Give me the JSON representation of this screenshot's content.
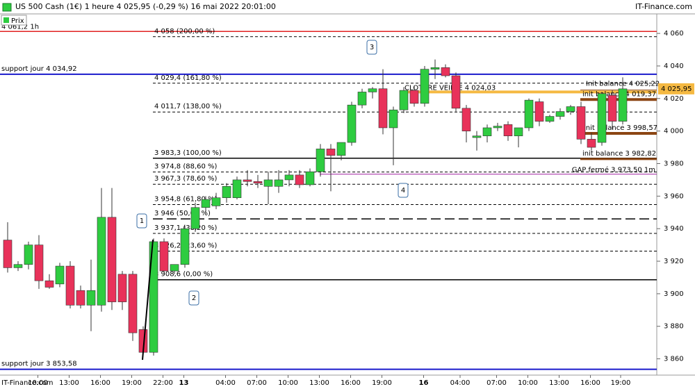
{
  "chart_data": {
    "type": "candlestick",
    "title": "US 500 Cash (1€) 1 heure 4 025,95 (-0,29 %) 16 mai 2022 20:01:00",
    "source": "IT-Finance.com",
    "watermark": "IT-Finance.com",
    "series": [
      {
        "name": "Prix",
        "up_color": "#2ecc40",
        "down_color": "#e8325a",
        "open": [
          3933,
          3916,
          3918,
          3930,
          3908,
          3906,
          3917,
          3902,
          3893,
          3893,
          3947,
          3912,
          3912,
          3878,
          3864,
          3932,
          3914,
          3918,
          3940,
          3953,
          3954,
          3959,
          3959,
          3970,
          3969,
          3966,
          3966,
          3970,
          3973,
          3967,
          3975,
          3989,
          3985,
          3993,
          4016,
          4024,
          4026,
          4002,
          4013,
          4025,
          4017,
          4038,
          4039,
          4034,
          4014,
          3996,
          3997,
          4002,
          4004,
          3997,
          4002,
          4018,
          4006,
          4009,
          4012,
          4015,
          3995,
          3993,
          4022,
          4006
        ],
        "high": [
          3944,
          3920,
          3932,
          3936,
          3912,
          3919,
          3920,
          3905,
          3921,
          3965,
          3965,
          3914,
          3914,
          3880,
          3934,
          3934,
          3918,
          3942,
          3956,
          3960,
          3962,
          3968,
          3972,
          3976,
          3973,
          3975,
          3976,
          3976,
          3976,
          3977,
          3992,
          3992,
          3993,
          4018,
          4026,
          4027,
          4038,
          4015,
          4027,
          4028,
          4040,
          4044,
          4041,
          4036,
          4016,
          4000,
          4004,
          4005,
          4006,
          4000,
          4020,
          4020,
          4010,
          4014,
          4016,
          4018,
          3999,
          4024,
          4025,
          4033
        ],
        "low": [
          3913,
          3914,
          3915,
          3903,
          3903,
          3904,
          3891,
          3891,
          3877,
          3889,
          3890,
          3890,
          3871,
          3862,
          3862,
          3912,
          3912,
          3916,
          3938,
          3950,
          3952,
          3956,
          3958,
          3966,
          3965,
          3955,
          3962,
          3966,
          3965,
          3966,
          3972,
          3963,
          3982,
          3991,
          4014,
          4020,
          3998,
          3979,
          4011,
          4015,
          4015,
          4032,
          4033,
          4012,
          3993,
          3988,
          3993,
          4000,
          3994,
          3990,
          4000,
          4003,
          4005,
          4007,
          4010,
          3992,
          3988,
          3991,
          4001,
          4004
        ],
        "close": [
          3916,
          3918,
          3930,
          3908,
          3904,
          3917,
          3893,
          3893,
          3902,
          3947,
          3895,
          3895,
          3876,
          3864,
          3932,
          3914,
          3918,
          3940,
          3953,
          3958,
          3959,
          3966,
          3970,
          3969,
          3968,
          3970,
          3970,
          3973,
          3967,
          3975,
          3989,
          3985,
          3993,
          4016,
          4024,
          4026,
          4002,
          4013,
          4025,
          4017,
          4038,
          4039,
          4034,
          4014,
          4000,
          3997,
          4002,
          4003,
          3997,
          4002,
          4019,
          4006,
          4009,
          4012,
          4015,
          3995,
          3990,
          4023,
          4006,
          4025.95
        ]
      }
    ],
    "current": {
      "value": 4025.95,
      "label": "4 025,95"
    },
    "ylim": [
      3850,
      4072
    ],
    "yticks": [
      {
        "value": 3860,
        "label": "3 860"
      },
      {
        "value": 3880,
        "label": "3 880"
      },
      {
        "value": 3900,
        "label": "3 900"
      },
      {
        "value": 3920,
        "label": "3 920"
      },
      {
        "value": 3940,
        "label": "3 940"
      },
      {
        "value": 3960,
        "label": "3 960"
      },
      {
        "value": 3980,
        "label": "3 980"
      },
      {
        "value": 4000,
        "label": "4 000"
      },
      {
        "value": 4020,
        "label": "4 020"
      },
      {
        "value": 4040,
        "label": "4 040"
      },
      {
        "value": 4060,
        "label": "4 060"
      }
    ],
    "xticks": [
      {
        "value": 2.9,
        "label": "10:00"
      },
      {
        "value": 5.9,
        "label": "13:00"
      },
      {
        "value": 8.9,
        "label": "16:00"
      },
      {
        "value": 11.9,
        "label": "19:00"
      },
      {
        "value": 14.9,
        "label": "22:00"
      },
      {
        "value": 16.9,
        "label": "13"
      },
      {
        "value": 20.9,
        "label": "04:00"
      },
      {
        "value": 23.9,
        "label": "07:00"
      },
      {
        "value": 26.9,
        "label": "10:00"
      },
      {
        "value": 29.9,
        "label": "13:00"
      },
      {
        "value": 32.9,
        "label": "16:00"
      },
      {
        "value": 35.9,
        "label": "19:00"
      },
      {
        "value": 39.9,
        "label": "16"
      },
      {
        "value": 43.4,
        "label": "04:00"
      },
      {
        "value": 46.9,
        "label": "07:00"
      },
      {
        "value": 49.9,
        "label": "10:00"
      },
      {
        "value": 52.9,
        "label": "13:00"
      },
      {
        "value": 55.9,
        "label": "16:00"
      },
      {
        "value": 58.8,
        "label": "19:00"
      }
    ],
    "levels": [
      {
        "label": "4 061,2 1h",
        "value": 4061.2,
        "color": "#e02020",
        "style": "solid"
      },
      {
        "label": "support jour 4 034,92",
        "value": 4034.92,
        "color": "#1a1acc",
        "style": "solid"
      },
      {
        "label": "support jour 3 853,58",
        "value": 3853.58,
        "color": "#1a1acc",
        "style": "solid"
      },
      {
        "label": "4 058 (200,00 %)",
        "value": 4058,
        "color": "#000000",
        "style": "dashed"
      },
      {
        "label": "4 029,4 (161,80 %)",
        "value": 4029.4,
        "color": "#000000",
        "style": "dashed"
      },
      {
        "label": "4 011,7 (138,00 %)",
        "value": 4011.7,
        "color": "#000000",
        "style": "dashed"
      },
      {
        "label": "3 983,3 (100,00 %)",
        "value": 3983.3,
        "color": "#000000",
        "style": "solid"
      },
      {
        "label": "3 974,8 (88,60 %)",
        "value": 3974.8,
        "color": "#000000",
        "style": "dashed"
      },
      {
        "label": "3 967,3 (78,60 %)",
        "value": 3967.3,
        "color": "#000000",
        "style": "dashed"
      },
      {
        "label": "3 954,8 (61,80 %)",
        "value": 3954.8,
        "color": "#000000",
        "style": "dashed"
      },
      {
        "label": "3 946 (50,00 %)",
        "value": 3946,
        "color": "#000000",
        "style": "longdash"
      },
      {
        "label": "3 937,1 (38,20 %)",
        "value": 3937.1,
        "color": "#000000",
        "style": "dashed"
      },
      {
        "label": "3 926,2 (23,60 %)",
        "value": 3926.2,
        "color": "#000000",
        "style": "dashed"
      },
      {
        "label": "3 908,6 (0,00 %)",
        "value": 3908.6,
        "color": "#000000",
        "style": "solid"
      },
      {
        "label": "CLOTURE VEILLE 4 024,03",
        "value": 4024.03,
        "color": "#f5b942",
        "style": "solid"
      },
      {
        "label": "Init balance 4 025,22",
        "value": 4025.22,
        "color": "#8b4513",
        "style": "solid"
      },
      {
        "label": "init balance 4 019,37",
        "value": 4019.37,
        "color": "#8b4513",
        "style": "solid"
      },
      {
        "label": "init balance 3 998,57",
        "value": 3998.57,
        "color": "#8b4513",
        "style": "solid"
      },
      {
        "label": "init balance 3 982,82",
        "value": 3982.82,
        "color": "#8b4513",
        "style": "solid"
      },
      {
        "label": "GAP fermé 3 973,50 1m",
        "value": 3973.5,
        "color": "#a020a0",
        "style": "solid"
      }
    ],
    "annotations": [
      "1",
      "2",
      "3",
      "4"
    ]
  }
}
